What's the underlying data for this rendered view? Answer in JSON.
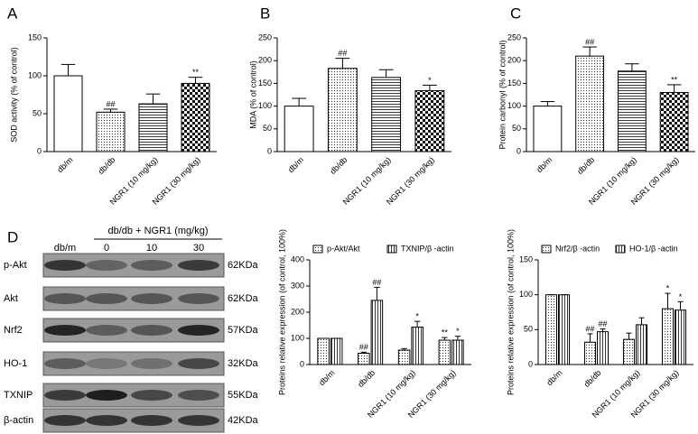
{
  "chart_data": [
    {
      "type": "bar",
      "panel": "A",
      "ylabel": "SOD activity (% of control)",
      "categories": [
        "db/m",
        "db/db",
        "NGR1 (10 mg/kg)",
        "NGR1 (30 mg/kg)"
      ],
      "values": [
        100,
        52,
        63,
        90
      ],
      "errors": [
        15,
        4,
        13,
        8
      ],
      "annotations": [
        null,
        "##",
        null,
        "**"
      ],
      "patterns": [
        "none",
        "dots",
        "hlines",
        "checker"
      ],
      "color": "#000000",
      "ylim": [
        0,
        150
      ],
      "yticks": [
        0,
        50,
        100,
        150
      ],
      "grid": false
    },
    {
      "type": "bar",
      "panel": "B",
      "ylabel": "MDA (% of control)",
      "categories": [
        "db/m",
        "db/db",
        "NGR1 (10 mg/kg)",
        "NGR1 (30 mg/kg)"
      ],
      "values": [
        100,
        183,
        163,
        134
      ],
      "errors": [
        17,
        22,
        17,
        12
      ],
      "annotations": [
        null,
        "##",
        null,
        "*"
      ],
      "patterns": [
        "none",
        "dots",
        "hlines",
        "checker"
      ],
      "color": "#000000",
      "ylim": [
        0,
        250
      ],
      "yticks": [
        0,
        50,
        100,
        150,
        200,
        250
      ],
      "grid": false
    },
    {
      "type": "bar",
      "panel": "C",
      "ylabel": "Protein carbonyl (% of control)",
      "categories": [
        "db/m",
        "db/db",
        "NGR1 (10 mg/kg)",
        "NGR1 (30 mg/kg)"
      ],
      "values": [
        100,
        210,
        177,
        130
      ],
      "errors": [
        10,
        20,
        16,
        17
      ],
      "annotations": [
        null,
        "##",
        null,
        "**"
      ],
      "patterns": [
        "none",
        "dots",
        "hlines",
        "checker"
      ],
      "color": "#000000",
      "ylim": [
        0,
        250
      ],
      "yticks": [
        0,
        50,
        100,
        150,
        200,
        250
      ],
      "grid": false
    },
    {
      "type": "grouped_bar",
      "ylabel": "Proteins relative expression (of control, 100%)",
      "categories": [
        "db/m",
        "db/db",
        "NGR1 (10 mg/kg)",
        "NGR1 (30 mg/kg)"
      ],
      "series": [
        {
          "name": "p-Akt/Akt",
          "color": "#000000",
          "pattern": "dots",
          "values": [
            100,
            43,
            55,
            93
          ],
          "errors": [
            0,
            4,
            6,
            10
          ],
          "annotations": [
            null,
            "##",
            null,
            "**"
          ]
        },
        {
          "name": "TXNIP/β -actin",
          "color": "#000000",
          "pattern": "vlines",
          "values": [
            100,
            245,
            143,
            93
          ],
          "errors": [
            0,
            50,
            22,
            15
          ],
          "annotations": [
            null,
            "##",
            "*",
            "*"
          ]
        }
      ],
      "ylim": [
        0,
        400
      ],
      "yticks": [
        0,
        100,
        200,
        300,
        400
      ],
      "grid": false,
      "legend": "top"
    },
    {
      "type": "grouped_bar",
      "ylabel": "Proteins relative expression (of control, 100%)",
      "categories": [
        "db/m",
        "db/db",
        "NGR1 (10 mg/kg)",
        "NGR1 (30 mg/kg)"
      ],
      "series": [
        {
          "name": "Nrf2/β -actin",
          "color": "#000000",
          "pattern": "dots",
          "values": [
            100,
            32,
            36,
            80
          ],
          "errors": [
            0,
            12,
            9,
            22
          ],
          "annotations": [
            null,
            "##",
            null,
            "*"
          ]
        },
        {
          "name": "HO-1/β -actin",
          "color": "#000000",
          "pattern": "vlines",
          "values": [
            100,
            47,
            57,
            78
          ],
          "errors": [
            0,
            4,
            10,
            12
          ],
          "annotations": [
            null,
            "##",
            null,
            "*"
          ]
        }
      ],
      "ylim": [
        0,
        150
      ],
      "yticks": [
        0,
        50,
        100,
        150
      ],
      "grid": false,
      "legend": "top"
    }
  ],
  "blot": {
    "panel": "D",
    "control": "db/m",
    "group": "db/db + NGR1 (mg/kg)",
    "doses": [
      "0",
      "10",
      "30"
    ],
    "rows": [
      {
        "label": "p-Akt",
        "size": "62KDa"
      },
      {
        "label": "Akt",
        "size": "62KDa"
      },
      {
        "label": "Nrf2",
        "size": "57KDa"
      },
      {
        "label": "HO-1",
        "size": "32KDa"
      },
      {
        "label": "TXNIP",
        "size": "55KDa"
      },
      {
        "label": "β-actin",
        "size": "42KDa"
      }
    ]
  }
}
